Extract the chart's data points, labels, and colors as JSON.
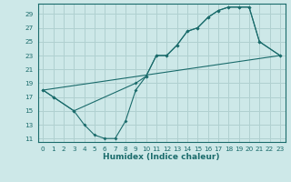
{
  "xlabel": "Humidex (Indice chaleur)",
  "bg_color": "#cde8e8",
  "grid_color": "#b0d0d0",
  "line_color": "#1a6b6b",
  "xlim": [
    -0.5,
    23.5
  ],
  "ylim": [
    10.5,
    30.5
  ],
  "yticks": [
    11,
    13,
    15,
    17,
    19,
    21,
    23,
    25,
    27,
    29
  ],
  "xticks": [
    0,
    1,
    2,
    3,
    4,
    5,
    6,
    7,
    8,
    9,
    10,
    11,
    12,
    13,
    14,
    15,
    16,
    17,
    18,
    19,
    20,
    21,
    22,
    23
  ],
  "curve1_x": [
    0,
    1,
    3,
    4,
    5,
    6,
    7,
    8,
    9,
    10,
    11,
    12,
    13,
    14,
    15,
    16,
    17,
    18,
    19,
    20,
    21,
    23
  ],
  "curve1_y": [
    18,
    17,
    15,
    13,
    11.5,
    11,
    11,
    13.5,
    18,
    20,
    23,
    23,
    24.5,
    26.5,
    27,
    28.5,
    29.5,
    30,
    30,
    30,
    25,
    23
  ],
  "curve2_x": [
    0,
    1,
    3,
    9,
    10,
    11,
    12,
    13,
    14,
    15,
    16,
    17,
    18,
    19,
    20,
    21,
    23
  ],
  "curve2_y": [
    18,
    17,
    15,
    19,
    20,
    23,
    23,
    24.5,
    26.5,
    27,
    28.5,
    29.5,
    30,
    30,
    30,
    25,
    23
  ],
  "line3_x": [
    0,
    23
  ],
  "line3_y": [
    18,
    23
  ]
}
